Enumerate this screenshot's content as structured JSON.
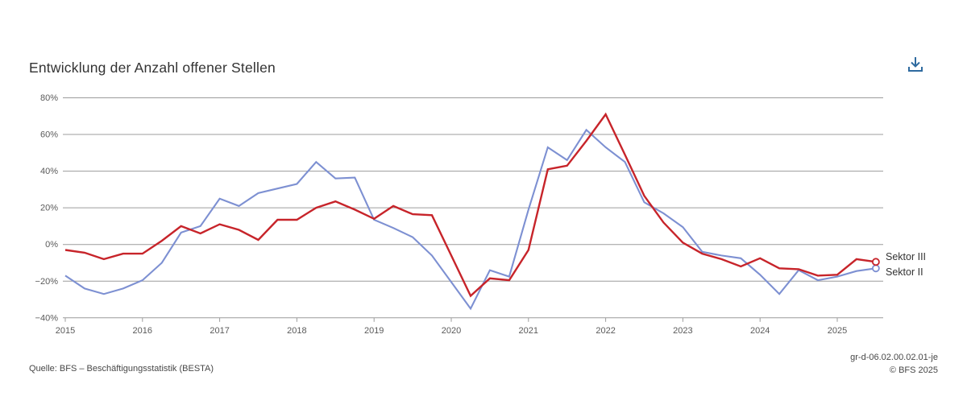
{
  "header": {
    "title": "Entwicklung der Anzahl offener Stellen"
  },
  "icons": {
    "download": "tray-arrow-down",
    "download_color": "#2e6a9f"
  },
  "footer": {
    "source": "Quelle: BFS – Beschäftigungsstatistik (BESTA)",
    "code": "gr-d-06.02.00.02.01-je",
    "copyright": "© BFS 2025"
  },
  "chart_data": {
    "type": "line",
    "title": "Entwicklung der Anzahl offener Stellen",
    "xlabel": "",
    "ylabel": "",
    "unit": "percent",
    "grid": true,
    "legend_position": "right-end-of-lines",
    "end_markers": "open-circle",
    "ylim": [
      -40,
      80
    ],
    "yticks": [
      80,
      60,
      40,
      20,
      0,
      -20,
      -40
    ],
    "ytick_labels": [
      "80%",
      "60%",
      "40%",
      "20%",
      "0%",
      "−20%",
      "−40%"
    ],
    "xticks": [
      2015,
      2016,
      2017,
      2018,
      2019,
      2020,
      2021,
      2022,
      2023,
      2024,
      2025
    ],
    "xtick_labels": [
      "2015",
      "2016",
      "2017",
      "2018",
      "2019",
      "2020",
      "2021",
      "2022",
      "2023",
      "2024",
      "2025"
    ],
    "x": [
      2015,
      2015.25,
      2015.5,
      2015.75,
      2016,
      2016.25,
      2016.5,
      2016.75,
      2017,
      2017.25,
      2017.5,
      2017.75,
      2018,
      2018.25,
      2018.5,
      2018.75,
      2019,
      2019.25,
      2019.5,
      2019.75,
      2020,
      2020.25,
      2020.5,
      2020.75,
      2021,
      2021.25,
      2021.5,
      2021.75,
      2022,
      2022.25,
      2022.5,
      2022.75,
      2023,
      2023.25,
      2023.5,
      2023.75,
      2024,
      2024.25,
      2024.5,
      2024.75,
      2025,
      2025.25,
      2025.5
    ],
    "series": [
      {
        "name": "Sektor III",
        "color": "#c7242a",
        "values": [
          -3,
          -4.5,
          -8,
          -5,
          -5,
          2,
          10,
          6,
          11,
          8,
          2.5,
          13.5,
          13.5,
          20,
          23.5,
          19,
          14,
          21,
          16.5,
          16,
          -6,
          -28,
          -18.5,
          -19.5,
          -3,
          41,
          43,
          56.5,
          71,
          49,
          26.5,
          12,
          1,
          -5,
          -8,
          -12,
          -7.5,
          -13,
          -13.5,
          -17,
          -16.5,
          -8,
          -9.5
        ]
      },
      {
        "name": "Sektor II",
        "color": "#7d90d2",
        "values": [
          -17,
          -24,
          -27,
          -24,
          -19.5,
          -10,
          6.5,
          10,
          25,
          21,
          28,
          30.5,
          33,
          45,
          36,
          36.5,
          13.5,
          9,
          4,
          -6,
          -20.5,
          -35,
          -14,
          -17.5,
          19,
          53,
          46,
          62.5,
          53,
          45,
          23,
          17,
          9.5,
          -4,
          -6,
          -7.5,
          -16.5,
          -27,
          -14,
          -19.5,
          -17.5,
          -14.5,
          -13
        ]
      }
    ],
    "colors": {
      "grid": "#9c9c9c",
      "axis_text": "#5a5a5a"
    }
  }
}
